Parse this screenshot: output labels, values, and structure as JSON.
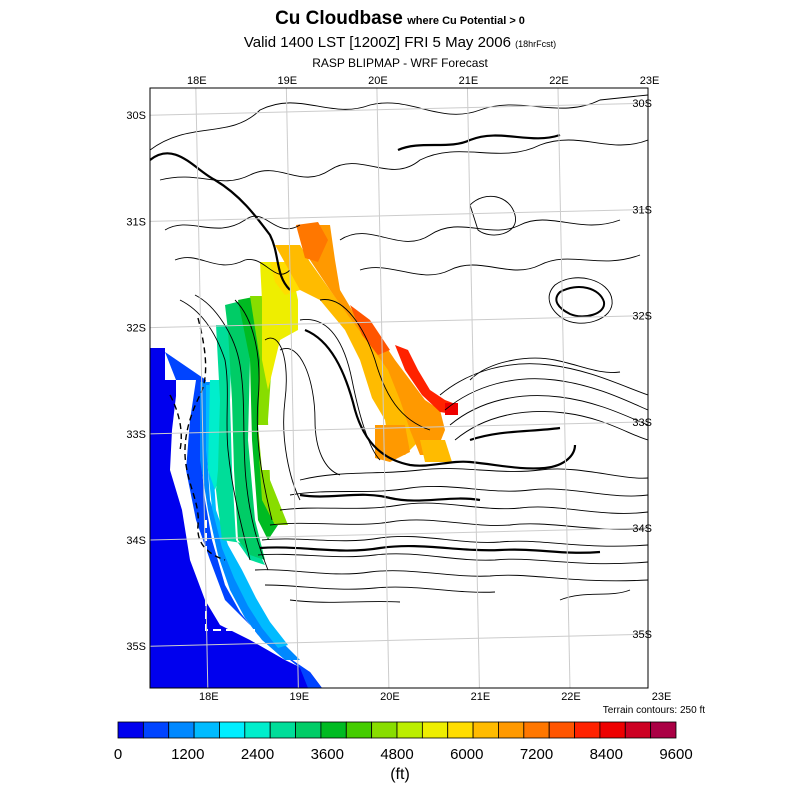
{
  "header": {
    "title": "Cu Cloudbase",
    "title_suffix": "where Cu Potential > 0",
    "valid": "Valid 1400 LST [1200Z] FRI 5 May 2006",
    "valid_suffix": "(18hrFcst)",
    "source": "RASP BLIPMAP - WRF Forecast"
  },
  "map": {
    "lon_labels": [
      "18E",
      "19E",
      "20E",
      "21E",
      "22E",
      "23E"
    ],
    "lat_labels": [
      "30S",
      "31S",
      "32S",
      "33S",
      "34S",
      "35S"
    ],
    "extent": {
      "lon": [
        17.45,
        22.95
      ],
      "lat": [
        -35.45,
        -29.8
      ]
    },
    "terrain_note": "Terrain contours: 250 ft"
  },
  "colorbar": {
    "colors": [
      "#0000ee",
      "#0044ff",
      "#0088ff",
      "#00bbff",
      "#00eeff",
      "#00eecc",
      "#00dd99",
      "#00cc66",
      "#00bb22",
      "#44cc00",
      "#88dd00",
      "#bbee00",
      "#eeee00",
      "#ffdd00",
      "#ffbb00",
      "#ff9900",
      "#ff7700",
      "#ff5500",
      "#ff2200",
      "#ee0000",
      "#cc0022",
      "#aa0044"
    ],
    "tick_labels": [
      "0",
      "1200",
      "2400",
      "3600",
      "4800",
      "6000",
      "7200",
      "8400",
      "9600"
    ],
    "unit": "(ft)"
  },
  "field_colors": {
    "ocean_far": "#0000ee",
    "ocean_mid": "#0044ff",
    "ocean_near": "#0088ff",
    "coast": "#00bbff"
  }
}
